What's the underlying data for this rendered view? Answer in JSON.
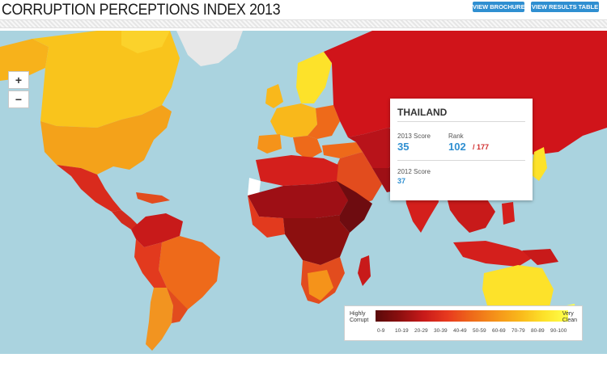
{
  "header": {
    "title": "CORRUPTION PERCEPTIONS INDEX 2013",
    "brochure_label": "VIEW BROCHURE",
    "results_label": "VIEW RESULTS TABLE"
  },
  "zoom": {
    "in_label": "+",
    "out_label": "−"
  },
  "popup": {
    "country": "THAILAND",
    "score_label": "2013 Score",
    "score": "35",
    "rank_label": "Rank",
    "rank": "102",
    "rank_total": "/ 177",
    "prev_label": "2012 Score",
    "prev_score": "37"
  },
  "legend": {
    "low_label_1": "Highly",
    "low_label_2": "Corrupt",
    "high_label_1": "Very",
    "high_label_2": "Clean",
    "ticks": [
      "0-9",
      "10-19",
      "20-29",
      "30-39",
      "40-49",
      "50-59",
      "60-69",
      "70-79",
      "80-89",
      "90-100"
    ],
    "colors": [
      "#5a0a0a",
      "#8c0f0f",
      "#c81a1a",
      "#e83a1e",
      "#ee6a1a",
      "#f5931a",
      "#f9b81b",
      "#fde22a",
      "#ffff4a",
      "#ffff9a"
    ]
  },
  "colors": {
    "ocean": "#aad3df",
    "accent": "#2f8fd1",
    "rank_red": "#d12c2c"
  }
}
